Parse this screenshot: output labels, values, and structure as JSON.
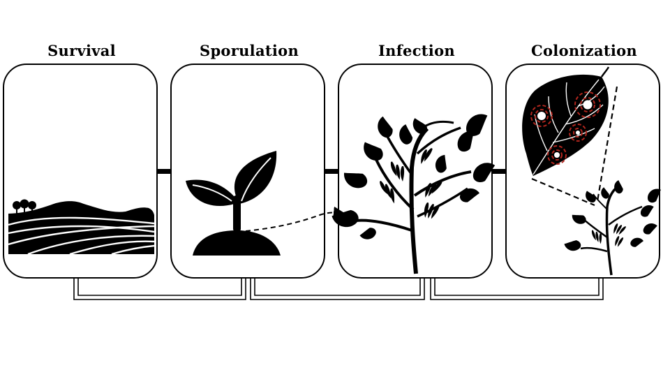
{
  "stages": [
    {
      "label": "Survival",
      "icon": "landscape-fields-icon"
    },
    {
      "label": "Sporulation",
      "icon": "seedling-icon"
    },
    {
      "label": "Infection",
      "icon": "bean-plant-icon"
    },
    {
      "label": "Colonization",
      "icon": "infected-leaf-icon"
    }
  ],
  "colors": {
    "outline": "#000000",
    "lesion": "#b3261e",
    "background": "#ffffff"
  }
}
